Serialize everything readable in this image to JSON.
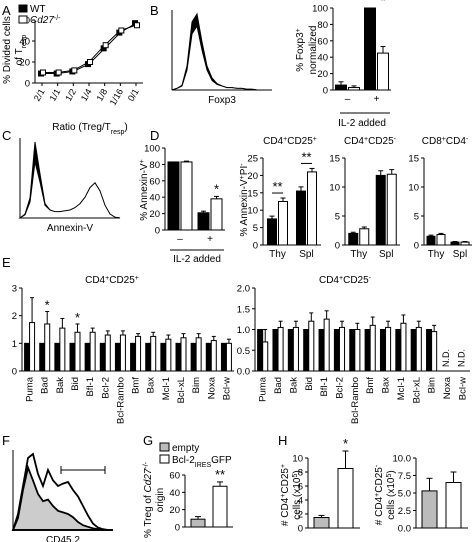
{
  "panel_letters": [
    "A",
    "B",
    "C",
    "D",
    "E",
    "F",
    "G",
    "H"
  ],
  "chart_data": [
    {
      "panel": "A",
      "type": "line",
      "ylabel": "% Divided cells of Tresp",
      "xlabel": "Ratio (Treg/Tresp)",
      "categories": [
        "2/1",
        "1/1",
        "1/2",
        "1/4",
        "1/8",
        "1/16",
        "0/1"
      ],
      "ylim": [
        0,
        60
      ],
      "yticks": [
        0,
        20,
        40,
        60
      ],
      "series": [
        {
          "name": "WT",
          "color": "#000000",
          "values": [
            9,
            9,
            11,
            18,
            33,
            48,
            57
          ]
        },
        {
          "name": "Cd27-/-",
          "color": "#ffffff",
          "values": [
            10,
            10,
            12,
            20,
            36,
            50,
            55
          ]
        }
      ]
    },
    {
      "panel": "B-hist",
      "type": "area",
      "xlabel": "Foxp3",
      "series": [
        {
          "fill": "#000000",
          "x": [
            0,
            0.05,
            0.1,
            0.15,
            0.2,
            0.25,
            0.3,
            0.35,
            0.4,
            0.45,
            0.5,
            0.55,
            0.6,
            0.65,
            0.7,
            0.75,
            0.8,
            0.85,
            0.9,
            0.95,
            1.0
          ],
          "y": [
            0,
            0.02,
            0.06,
            0.3,
            0.85,
            0.95,
            0.6,
            0.3,
            0.15,
            0.08,
            0.05,
            0.03,
            0.03,
            0.02,
            0.02,
            0.01,
            0.01,
            0,
            0,
            0,
            0
          ]
        },
        {
          "fill": "#ffffff",
          "x": [
            0,
            0.05,
            0.1,
            0.15,
            0.2,
            0.25,
            0.3,
            0.35,
            0.4,
            0.45,
            0.5,
            0.55,
            0.6,
            0.65,
            0.7,
            0.75,
            0.8,
            0.85,
            0.9,
            0.95,
            1.0
          ],
          "y": [
            0,
            0.02,
            0.05,
            0.25,
            0.7,
            0.8,
            0.5,
            0.25,
            0.12,
            0.07,
            0.05,
            0.03,
            0.03,
            0.02,
            0.02,
            0.01,
            0.01,
            0,
            0,
            0,
            0
          ]
        }
      ]
    },
    {
      "panel": "B",
      "type": "bar",
      "ylabel": "% Foxp3+ normalized",
      "groups": [
        "–",
        "+"
      ],
      "group_label": "IL-2 added",
      "ylim": [
        0,
        100
      ],
      "yticks": [
        0,
        20,
        40,
        60,
        80,
        100
      ],
      "series": [
        {
          "name": "WT",
          "color": "#000000",
          "values": [
            6,
            100
          ],
          "errors": [
            4,
            0
          ]
        },
        {
          "name": "Cd27-/-",
          "color": "#ffffff",
          "values": [
            3,
            45
          ],
          "errors": [
            2,
            8
          ]
        }
      ],
      "annotations": [
        {
          "group": 1,
          "text": "*"
        }
      ]
    },
    {
      "panel": "C-hist",
      "type": "area",
      "xlabel": "Annexin-V",
      "series": [
        {
          "fill": "#000000",
          "x": [
            0,
            0.05,
            0.1,
            0.15,
            0.2,
            0.25,
            0.3,
            0.35,
            0.4,
            0.45,
            0.5,
            0.55,
            0.6,
            0.65,
            0.7,
            0.75,
            0.8,
            0.85,
            0.9,
            0.95,
            1.0
          ],
          "y": [
            0,
            0.05,
            0.25,
            0.95,
            0.55,
            0.18,
            0.1,
            0.07,
            0.06,
            0.06,
            0.07,
            0.09,
            0.12,
            0.18,
            0.28,
            0.33,
            0.25,
            0.12,
            0.04,
            0.01,
            0
          ]
        },
        {
          "fill": "#ffffff",
          "x": [
            0,
            0.05,
            0.1,
            0.15,
            0.2,
            0.25,
            0.3,
            0.35,
            0.4,
            0.45,
            0.5,
            0.55,
            0.6,
            0.65,
            0.7,
            0.75,
            0.8,
            0.85,
            0.9,
            0.95,
            1.0
          ],
          "y": [
            0,
            0.04,
            0.2,
            0.7,
            0.45,
            0.16,
            0.1,
            0.08,
            0.08,
            0.09,
            0.1,
            0.13,
            0.18,
            0.26,
            0.38,
            0.44,
            0.34,
            0.16,
            0.05,
            0.01,
            0
          ]
        }
      ]
    },
    {
      "panel": "C",
      "type": "bar",
      "ylabel": "% Annexin-V+",
      "groups": [
        "–",
        "+"
      ],
      "group_label": "IL-2 added",
      "ylim": [
        0,
        100
      ],
      "yticks": [
        0,
        20,
        40,
        60,
        80,
        100
      ],
      "series": [
        {
          "name": "WT",
          "color": "#000000",
          "values": [
            83,
            21
          ],
          "errors": [
            0,
            2
          ]
        },
        {
          "name": "Cd27-/-",
          "color": "#ffffff",
          "values": [
            83,
            38
          ],
          "errors": [
            1,
            3
          ]
        }
      ],
      "annotations": [
        {
          "group": 1,
          "text": "*"
        }
      ]
    },
    {
      "panel": "D1",
      "type": "bar",
      "title": "CD4+CD25+",
      "ylabel": "% Annexin-V+PI-",
      "groups": [
        "Thy",
        "Spl"
      ],
      "ylim": [
        0,
        25
      ],
      "yticks": [
        0,
        5,
        10,
        15,
        20,
        25
      ],
      "series": [
        {
          "name": "WT",
          "color": "#000000",
          "values": [
            7.5,
            15.5
          ],
          "errors": [
            0.8,
            1.2
          ]
        },
        {
          "name": "Cd27-/-",
          "color": "#ffffff",
          "values": [
            12.5,
            21
          ],
          "errors": [
            1,
            1
          ]
        }
      ],
      "annotations": [
        {
          "group": 0,
          "text": "**"
        },
        {
          "group": 1,
          "text": "**"
        }
      ]
    },
    {
      "panel": "D2",
      "type": "bar",
      "title": "CD4+CD25-",
      "groups": [
        "Thy",
        "Spl"
      ],
      "ylim": [
        0,
        15
      ],
      "yticks": [
        0,
        5,
        10,
        15
      ],
      "series": [
        {
          "name": "WT",
          "color": "#000000",
          "values": [
            2,
            12
          ],
          "errors": [
            0.2,
            0.8
          ]
        },
        {
          "name": "Cd27-/-",
          "color": "#ffffff",
          "values": [
            2.8,
            12.2
          ],
          "errors": [
            0.3,
            0.8
          ]
        }
      ]
    },
    {
      "panel": "D3",
      "type": "bar",
      "title": "CD8+CD4-",
      "groups": [
        "Thy",
        "Spl"
      ],
      "ylim": [
        0,
        15
      ],
      "yticks": [
        0,
        5,
        10,
        15
      ],
      "series": [
        {
          "name": "WT",
          "color": "#000000",
          "values": [
            1.5,
            0.5
          ],
          "errors": [
            0.2,
            0.1
          ]
        },
        {
          "name": "Cd27-/-",
          "color": "#ffffff",
          "values": [
            1.8,
            0.5
          ],
          "errors": [
            0.2,
            0.1
          ]
        }
      ]
    },
    {
      "panel": "E1",
      "type": "bar",
      "title": "CD4+CD25+",
      "ylim": [
        0,
        3
      ],
      "yticks": [
        0,
        1,
        2,
        3
      ],
      "categories": [
        "Puma",
        "Bad",
        "Bak",
        "Bid",
        "Bfl-1",
        "Bcl-2",
        "Bcl-Rambo",
        "Bmf",
        "Bax",
        "Mcl-1",
        "Bcl-xL",
        "Bim",
        "Noxa",
        "Bcl-w"
      ],
      "series": [
        {
          "name": "WT",
          "color": "#000000",
          "values": [
            1,
            1,
            1,
            1,
            1,
            1,
            1,
            1,
            1,
            1,
            1,
            1,
            1,
            1
          ]
        },
        {
          "name": "Cd27-/-",
          "color": "#ffffff",
          "values": [
            1.75,
            1.7,
            1.55,
            1.4,
            1.4,
            1.3,
            1.3,
            1.25,
            1.25,
            1.15,
            1.2,
            1.2,
            1.1,
            1.0
          ],
          "errors": [
            0.9,
            0.45,
            0.35,
            0.3,
            0.15,
            0.15,
            0.15,
            0.1,
            0.15,
            0.15,
            0.15,
            0.15,
            0.15,
            0.15
          ]
        }
      ],
      "annotations": [
        {
          "category": 1,
          "text": "*"
        },
        {
          "category": 3,
          "text": "*"
        }
      ]
    },
    {
      "panel": "E2",
      "type": "bar",
      "title": "CD4+CD25-",
      "ylim": [
        0,
        2
      ],
      "yticks": [
        0,
        0.5,
        1.0,
        1.5,
        2.0
      ],
      "categories": [
        "Puma",
        "Bad",
        "Bak",
        "Bid",
        "Bfl-1",
        "Bcl-2",
        "Bcl-Rambo",
        "Bmf",
        "Bax",
        "Mcl-1",
        "Bcl-xL",
        "Bim",
        "Noxa",
        "Bcl-w"
      ],
      "series": [
        {
          "name": "WT",
          "color": "#000000",
          "values": [
            1,
            1,
            1,
            1,
            1,
            1,
            1,
            1,
            1,
            1,
            1,
            1,
            0,
            0
          ]
        },
        {
          "name": "Cd27-/-",
          "color": "#ffffff",
          "values": [
            0.7,
            1.05,
            1.05,
            1.2,
            1.25,
            1.05,
            1.0,
            1.1,
            1.05,
            1.15,
            1.05,
            0.95,
            0,
            0
          ],
          "errors": [
            0.3,
            0.15,
            0.15,
            0.2,
            0.2,
            0.15,
            0.15,
            0.2,
            0.15,
            0.2,
            0.15,
            0.15,
            0,
            0
          ]
        }
      ],
      "not_determined": [
        "Noxa",
        "Bcl-w"
      ],
      "nd_label": "N.D."
    },
    {
      "panel": "F",
      "type": "area",
      "xlabel": "CD45.2",
      "series": [
        {
          "fill": "#cccccc",
          "x": [
            0,
            0.05,
            0.1,
            0.15,
            0.2,
            0.25,
            0.3,
            0.35,
            0.4,
            0.45,
            0.5,
            0.55,
            0.6,
            0.65,
            0.7,
            0.75,
            0.8,
            0.85,
            0.9,
            0.95,
            1.0
          ],
          "y": [
            0,
            0.15,
            0.5,
            0.78,
            0.62,
            0.45,
            0.36,
            0.38,
            0.3,
            0.24,
            0.22,
            0.2,
            0.16,
            0.1,
            0.06,
            0.04,
            0.02,
            0.01,
            0,
            0,
            0
          ]
        },
        {
          "fill": "none",
          "x": [
            0,
            0.05,
            0.1,
            0.15,
            0.2,
            0.25,
            0.3,
            0.35,
            0.4,
            0.45,
            0.5,
            0.55,
            0.6,
            0.65,
            0.7,
            0.75,
            0.8,
            0.85,
            0.9,
            0.95,
            1.0
          ],
          "y": [
            0,
            0.2,
            0.55,
            0.9,
            0.95,
            0.7,
            0.55,
            0.75,
            0.62,
            0.55,
            0.58,
            0.6,
            0.5,
            0.42,
            0.3,
            0.18,
            0.08,
            0.03,
            0.01,
            0,
            0
          ]
        }
      ],
      "gate": [
        0.48,
        0.92
      ]
    },
    {
      "panel": "G",
      "type": "bar",
      "ylabel": "% Treg of Cd27-/- origin",
      "ylim": [
        0,
        60
      ],
      "yticks": [
        0,
        20,
        40,
        60
      ],
      "legend": [
        {
          "name": "empty",
          "color": "#bbbbbb"
        },
        {
          "name": "Bcl-2IRESGFP",
          "color": "#ffffff"
        }
      ],
      "values": [
        9,
        47
      ],
      "errors": [
        3,
        5
      ],
      "colors": [
        "#bbbbbb",
        "#ffffff"
      ],
      "annotations": [
        {
          "bar": 1,
          "text": "**"
        }
      ]
    },
    {
      "panel": "H1",
      "type": "bar",
      "ylabel": "# CD4+CD25+ cells (x10^5)",
      "ylim": [
        0,
        10
      ],
      "yticks": [
        0,
        2,
        4,
        6,
        8,
        10
      ],
      "values": [
        1.5,
        8.5
      ],
      "errors": [
        0.3,
        2.5
      ],
      "colors": [
        "#bbbbbb",
        "#ffffff"
      ],
      "annotations": [
        {
          "bar": 1,
          "text": "*"
        }
      ]
    },
    {
      "panel": "H2",
      "type": "bar",
      "ylabel": "# CD4+CD25- cells (x10^5)",
      "ylim": [
        0,
        10
      ],
      "yticks": [
        0,
        2.5,
        5.0,
        7.5,
        10.0
      ],
      "values": [
        5.3,
        6.5
      ],
      "errors": [
        1.8,
        1.5
      ],
      "colors": [
        "#bbbbbb",
        "#ffffff"
      ]
    }
  ]
}
